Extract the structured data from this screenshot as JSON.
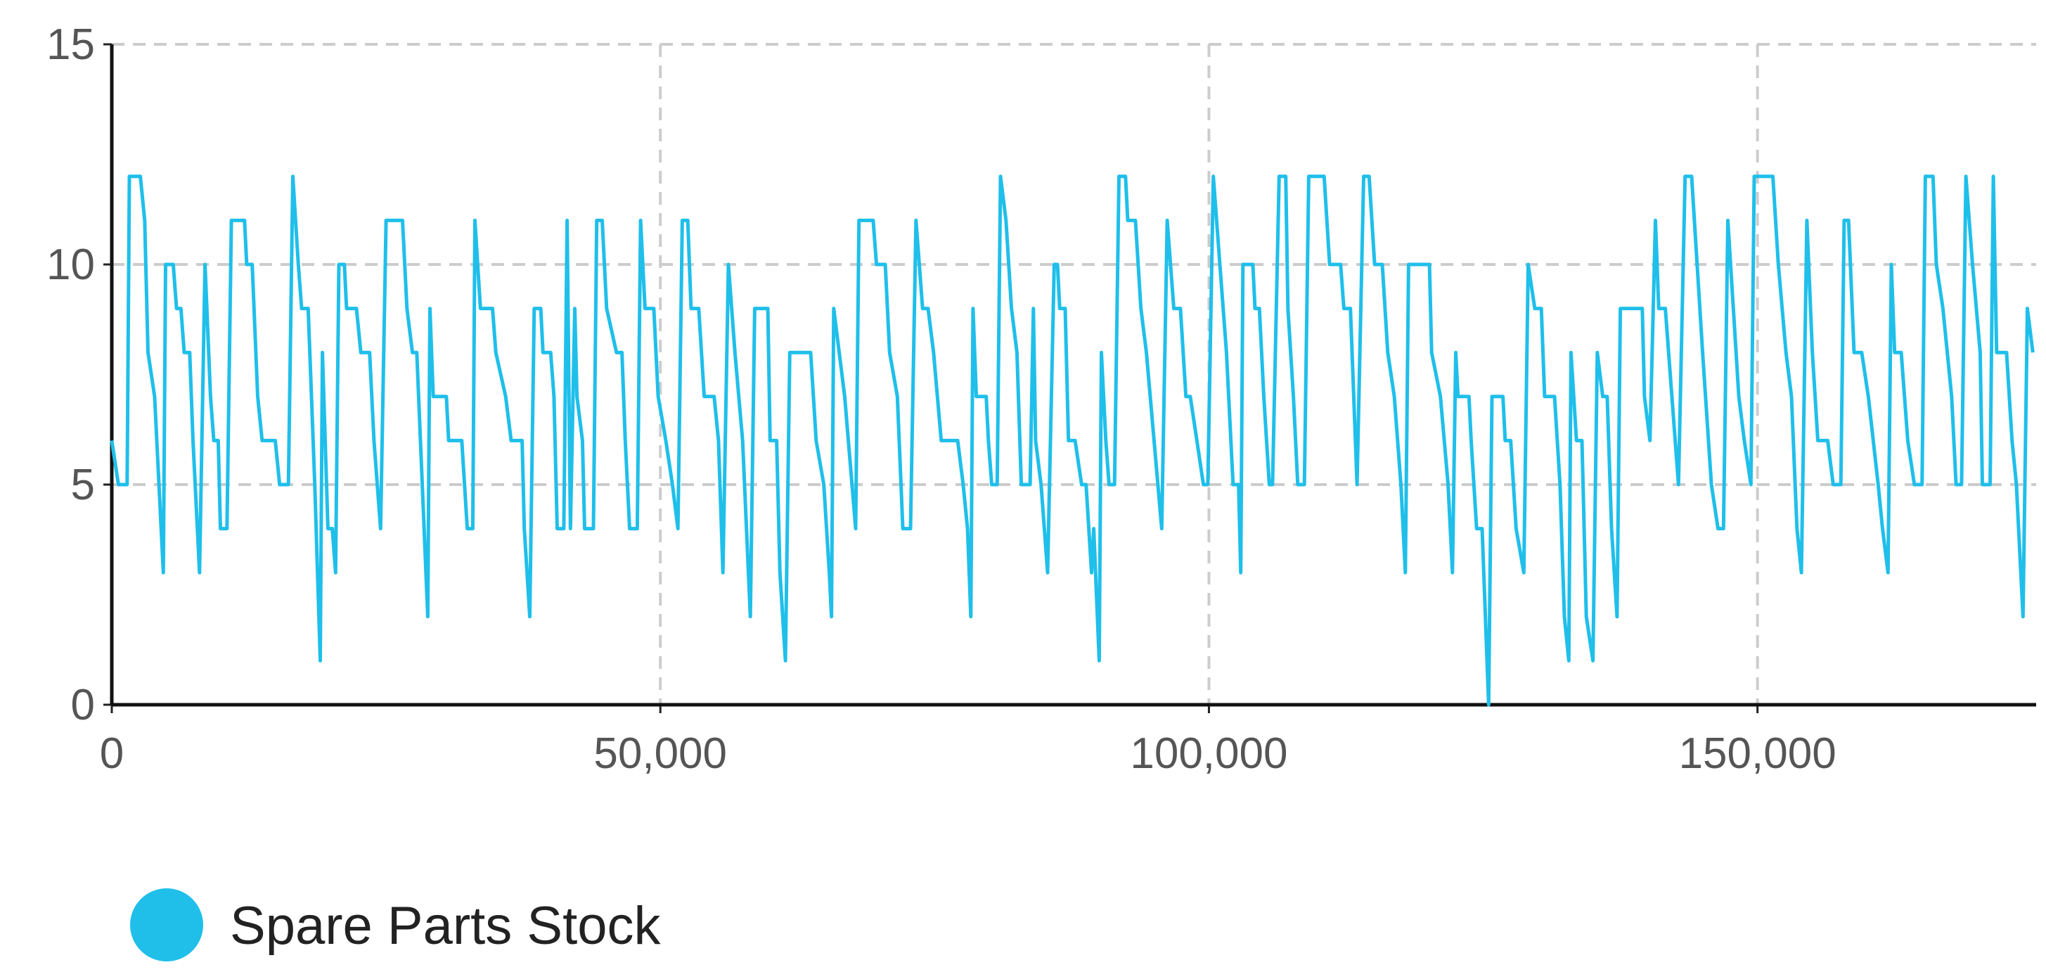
{
  "chart_data": {
    "type": "line",
    "x": [
      0,
      600,
      1400,
      1600,
      2600,
      3000,
      3300,
      3900,
      4700,
      4900,
      5600,
      5900,
      6300,
      6600,
      7100,
      7400,
      8000,
      8500,
      9000,
      9300,
      9700,
      9900,
      10500,
      10900,
      12100,
      12300,
      12800,
      13300,
      13700,
      14900,
      15300,
      16100,
      16500,
      17000,
      17300,
      17900,
      18500,
      19000,
      19200,
      19700,
      20100,
      20400,
      20700,
      21200,
      21400,
      22300,
      22700,
      23500,
      23900,
      24500,
      25000,
      26500,
      26900,
      27400,
      27800,
      28300,
      28800,
      29000,
      29300,
      30500,
      30700,
      31900,
      32400,
      32900,
      33100,
      33600,
      34700,
      35000,
      35900,
      36400,
      37400,
      37600,
      38100,
      38500,
      39100,
      39300,
      40000,
      40300,
      40600,
      41200,
      41500,
      41800,
      42200,
      42400,
      42900,
      43100,
      43900,
      44200,
      44700,
      45100,
      46000,
      46500,
      46800,
      47200,
      47900,
      48200,
      48600,
      49400,
      49800,
      50500,
      51100,
      51600,
      52000,
      52500,
      52800,
      53500,
      54000,
      54900,
      55300,
      55700,
      56200,
      56800,
      57500,
      58200,
      58600,
      59800,
      60000,
      60600,
      60900,
      61400,
      61800,
      63700,
      64200,
      64900,
      65400,
      65600,
      65800,
      66300,
      66800,
      67800,
      68100,
      69400,
      69700,
      70500,
      70900,
      71600,
      72100,
      72800,
      73300,
      73900,
      74400,
      74900,
      75600,
      77100,
      77600,
      78000,
      78300,
      78500,
      78800,
      79700,
      79900,
      80200,
      80700,
      81000,
      81500,
      82000,
      82500,
      82900,
      83700,
      84000,
      84200,
      84700,
      85300,
      85900,
      86200,
      86400,
      86900,
      87200,
      87800,
      88400,
      88800,
      89300,
      89500,
      90000,
      90200,
      90600,
      90900,
      91400,
      91800,
      92400,
      92600,
      93300,
      93800,
      94300,
      95000,
      95700,
      96200,
      96800,
      97400,
      97900,
      98300,
      98900,
      99500,
      99900,
      100400,
      101000,
      101600,
      102200,
      102700,
      102900,
      103100,
      104000,
      104200,
      104600,
      105000,
      105500,
      105800,
      106400,
      107000,
      107200,
      107700,
      108100,
      108700,
      109100,
      110500,
      111000,
      112000,
      112300,
      112900,
      113500,
      114100,
      114600,
      115100,
      115800,
      116300,
      116900,
      117500,
      117900,
      118200,
      120100,
      120300,
      121100,
      121800,
      122200,
      122500,
      122700,
      123700,
      123900,
      124400,
      124900,
      125500,
      125800,
      126800,
      127000,
      127500,
      128000,
      128700,
      129100,
      129700,
      130300,
      130600,
      131500,
      132000,
      132400,
      132800,
      133000,
      133500,
      134000,
      134400,
      135000,
      135400,
      135900,
      136300,
      136700,
      137200,
      137500,
      139500,
      139700,
      140200,
      140700,
      141000,
      141600,
      142200,
      142800,
      143400,
      144000,
      144500,
      145000,
      145800,
      146400,
      146900,
      147300,
      147800,
      148300,
      148800,
      149400,
      149700,
      151400,
      151900,
      152600,
      153100,
      153600,
      154000,
      154500,
      155000,
      155500,
      156400,
      156900,
      157600,
      157900,
      158300,
      158800,
      159500,
      160100,
      161000,
      161400,
      161900,
      162200,
      162500,
      163100,
      163700,
      164300,
      165000,
      165300,
      166000,
      166300,
      166900,
      167700,
      168100,
      168600,
      169000,
      169600,
      170300,
      170500,
      171200,
      171500,
      171800,
      172700,
      173200,
      173600,
      174200,
      174600,
      175100
    ],
    "series": [
      {
        "name": "Spare Parts Stock",
        "color": "#1fbfea",
        "values": [
          6,
          5,
          5,
          12,
          12,
          11,
          8,
          7,
          3,
          10,
          10,
          9,
          9,
          8,
          8,
          6,
          3,
          10,
          7,
          6,
          6,
          4,
          4,
          11,
          11,
          10,
          10,
          7,
          6,
          6,
          5,
          5,
          12,
          10,
          9,
          9,
          5,
          1,
          8,
          4,
          4,
          3,
          10,
          10,
          9,
          9,
          8,
          8,
          6,
          4,
          11,
          11,
          9,
          8,
          8,
          5,
          2,
          9,
          7,
          7,
          6,
          6,
          4,
          4,
          11,
          9,
          9,
          8,
          7,
          6,
          6,
          4,
          2,
          9,
          9,
          8,
          8,
          7,
          4,
          4,
          11,
          4,
          9,
          7,
          6,
          4,
          4,
          11,
          11,
          9,
          8,
          8,
          6,
          4,
          4,
          11,
          9,
          9,
          7,
          6,
          5,
          4,
          11,
          11,
          9,
          9,
          7,
          7,
          6,
          3,
          10,
          8,
          6,
          2,
          9,
          9,
          6,
          6,
          3,
          1,
          8,
          8,
          6,
          5,
          3,
          2,
          9,
          8,
          7,
          4,
          11,
          11,
          10,
          10,
          8,
          7,
          4,
          4,
          11,
          9,
          9,
          8,
          6,
          6,
          5,
          4,
          2,
          9,
          7,
          7,
          6,
          5,
          5,
          12,
          11,
          9,
          8,
          5,
          5,
          9,
          6,
          5,
          3,
          10,
          10,
          9,
          9,
          6,
          6,
          5,
          5,
          3,
          4,
          1,
          8,
          6,
          5,
          5,
          12,
          12,
          11,
          11,
          9,
          8,
          6,
          4,
          11,
          9,
          9,
          7,
          7,
          6,
          5,
          5,
          12,
          10,
          8,
          5,
          5,
          3,
          10,
          10,
          9,
          9,
          7,
          5,
          5,
          12,
          12,
          9,
          7,
          5,
          5,
          12,
          12,
          10,
          10,
          9,
          9,
          5,
          12,
          12,
          10,
          10,
          8,
          7,
          5,
          3,
          10,
          10,
          8,
          7,
          5,
          3,
          8,
          7,
          7,
          6,
          4,
          4,
          0,
          7,
          7,
          6,
          6,
          4,
          3,
          10,
          9,
          9,
          7,
          7,
          5,
          2,
          1,
          8,
          6,
          6,
          2,
          1,
          8,
          7,
          7,
          4,
          2,
          9,
          9,
          7,
          6,
          11,
          9,
          9,
          7,
          5,
          12,
          12,
          10,
          8,
          5,
          4,
          4,
          11,
          9,
          7,
          6,
          5,
          12,
          12,
          10,
          8,
          7,
          4,
          3,
          11,
          8,
          6,
          6,
          5,
          5,
          11,
          11,
          8,
          8,
          7,
          5,
          4,
          3,
          10,
          8,
          8,
          6,
          5,
          5,
          12,
          12,
          10,
          9,
          7,
          5,
          5,
          12,
          10,
          8,
          5,
          5,
          12,
          8,
          8,
          6,
          5,
          2,
          9,
          8
        ]
      }
    ],
    "xlim": [
      0,
      175400
    ],
    "ylim": [
      0,
      15
    ],
    "xticks": [
      0,
      {
        "value": 50000,
        "label": "50,000"
      },
      {
        "value": 100000,
        "label": "100,000"
      },
      {
        "value": 150000,
        "label": "150,000"
      }
    ],
    "yticks": [
      0,
      5,
      10,
      15
    ],
    "grid": true,
    "legend": "bottom-left"
  }
}
